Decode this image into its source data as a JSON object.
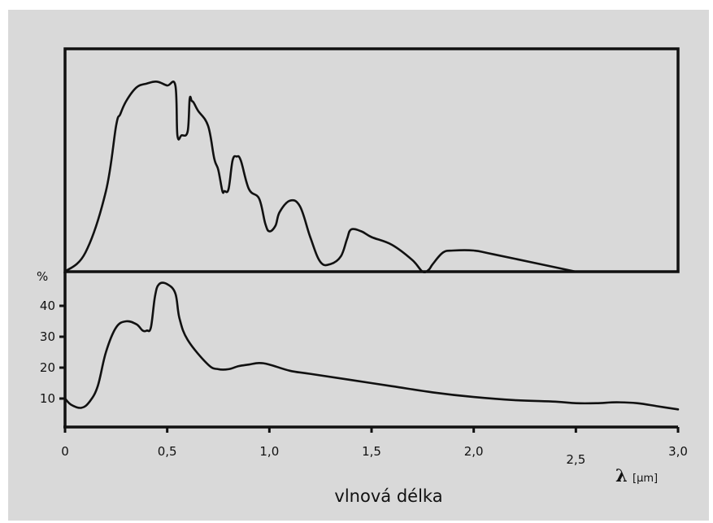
{
  "colors": {
    "background": "#d9d9d9",
    "line": "#111111",
    "outer": "#ffffff"
  },
  "chart_data": [
    {
      "type": "line",
      "panel": "upper",
      "xlim": [
        0,
        3.0
      ],
      "ylim": [
        0,
        100
      ],
      "series": [
        {
          "x": [
            0,
            0.1,
            0.2,
            0.25,
            0.27,
            0.3,
            0.35,
            0.4,
            0.45,
            0.5,
            0.54,
            0.55,
            0.57,
            0.6,
            0.61,
            0.62,
            0.63,
            0.65,
            0.7,
            0.73,
            0.75,
            0.77,
            0.78,
            0.8,
            0.82,
            0.84,
            0.86,
            0.9,
            0.95,
            0.98,
            1.0,
            1.03,
            1.05,
            1.1,
            1.15,
            1.2,
            1.25,
            1.3,
            1.35,
            1.38,
            1.4,
            1.45,
            1.5,
            1.6,
            1.7,
            1.75,
            1.78,
            1.8,
            1.85,
            1.9,
            2.0,
            2.1,
            2.5
          ],
          "y": [
            0,
            10,
            42,
            76,
            82,
            89,
            96,
            98,
            99,
            97,
            97,
            71,
            71,
            73,
            90,
            89,
            88,
            84,
            76,
            59,
            53,
            42,
            42,
            43,
            58,
            60,
            58,
            43,
            38,
            25,
            21,
            24,
            31,
            37,
            34,
            18,
            5,
            4,
            8,
            17,
            22,
            21,
            18,
            14,
            6,
            0,
            1,
            4,
            10,
            11,
            11,
            9,
            0
          ]
        }
      ]
    },
    {
      "type": "line",
      "panel": "lower",
      "ylabel": "%",
      "xlabel": "vlnová délka",
      "x_symbol": "λ",
      "x_unit": "[µm]",
      "xlim": [
        0,
        3.0
      ],
      "ylim": [
        5,
        50
      ],
      "xticks": [
        0,
        0.5,
        1.0,
        1.5,
        2.0,
        2.5,
        3.0
      ],
      "xtick_labels": [
        "0",
        "0,5",
        "1,0",
        "1,5",
        "2,0",
        "2,5",
        "3,0"
      ],
      "yticks": [
        10,
        20,
        30,
        40
      ],
      "ytick_labels": [
        "10",
        "20",
        "30",
        "40"
      ],
      "series": [
        {
          "x": [
            0,
            0.03,
            0.08,
            0.12,
            0.16,
            0.2,
            0.25,
            0.3,
            0.35,
            0.38,
            0.4,
            0.42,
            0.44,
            0.46,
            0.5,
            0.54,
            0.56,
            0.6,
            0.7,
            0.75,
            0.8,
            0.85,
            0.9,
            0.95,
            1.0,
            1.1,
            1.2,
            1.4,
            1.6,
            1.8,
            2.0,
            2.2,
            2.4,
            2.5,
            2.6,
            2.7,
            2.8,
            2.9,
            3.0
          ],
          "y": [
            10,
            8,
            7,
            9,
            14,
            25,
            33,
            35,
            34,
            32,
            32,
            33,
            43,
            47,
            47,
            44,
            36,
            29,
            21,
            19.5,
            19.5,
            20.5,
            21,
            21.5,
            21,
            19,
            18,
            16,
            14,
            12,
            10.5,
            9.5,
            9,
            8.5,
            8.5,
            8.8,
            8.5,
            7.5,
            6.5
          ]
        }
      ]
    }
  ]
}
